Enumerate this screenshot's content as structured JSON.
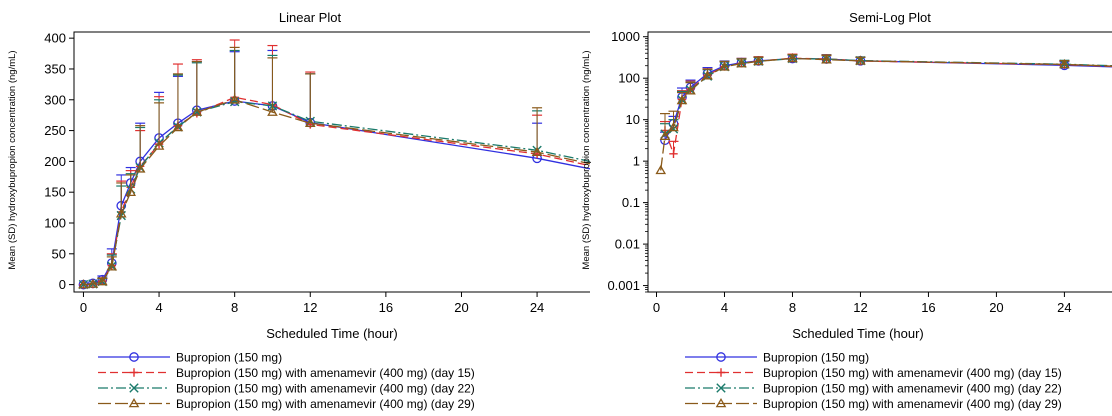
{
  "chart_data": [
    {
      "type": "line",
      "title": "Linear Plot",
      "xlabel": "Scheduled Time (hour)",
      "ylabel": "Mean (SD) hydroxybupropion concentration (ng/mL)",
      "xticks": [
        "0",
        "4",
        "8",
        "12",
        "16",
        "20",
        "24"
      ],
      "yticks": [
        "0",
        "50",
        "100",
        "150",
        "200",
        "250",
        "300",
        "350",
        "400"
      ],
      "xlim": [
        -0.5,
        26.8
      ],
      "ylim": [
        -12,
        410
      ],
      "yscale": "linear",
      "grid": false,
      "error_bars": "SD (upper)",
      "legend_position": "bottom-left",
      "series": [
        {
          "name": "Bupropion (150 mg)",
          "color": "#3030e0",
          "marker": "circle",
          "dash": "solid",
          "x": [
            0,
            0.5,
            1,
            1.5,
            2,
            2.5,
            3,
            4,
            5,
            6,
            8,
            10,
            12,
            24,
            26.8
          ],
          "y": [
            0,
            2,
            8,
            35,
            128,
            165,
            200,
            238,
            262,
            283,
            298,
            290,
            263,
            205,
            188
          ],
          "sd_upper": [
            0,
            2,
            14,
            58,
            178,
            190,
            262,
            312,
            338,
            362,
            378,
            380,
            342,
            262,
            null
          ]
        },
        {
          "name": "Bupropion (150 mg) with amenamevir (400 mg) (day 15)",
          "color": "#e03030",
          "marker": "plus",
          "dash": "dash",
          "x": [
            0,
            0.5,
            1,
            1.5,
            2,
            2.5,
            3,
            4,
            5,
            6,
            8,
            10,
            12,
            24,
            26.8
          ],
          "y": [
            0,
            1,
            6,
            31,
            118,
            158,
            192,
            228,
            258,
            278,
            304,
            292,
            260,
            212,
            193
          ],
          "sd_upper": [
            0,
            1,
            11,
            50,
            168,
            185,
            250,
            305,
            358,
            365,
            397,
            388,
            345,
            275,
            null
          ]
        },
        {
          "name": "Bupropion (150 mg) with amenamevir (400 mg) (day 22)",
          "color": "#1a7a6a",
          "marker": "x",
          "dash": "dashdot",
          "x": [
            0,
            0.5,
            1,
            1.5,
            2,
            2.5,
            3,
            4,
            5,
            6,
            8,
            10,
            12,
            24,
            26.8
          ],
          "y": [
            0,
            1,
            5,
            30,
            112,
            155,
            190,
            230,
            256,
            280,
            297,
            290,
            265,
            218,
            200
          ],
          "sd_upper": [
            0,
            1,
            10,
            48,
            160,
            180,
            255,
            300,
            340,
            360,
            380,
            372,
            342,
            282,
            null
          ]
        },
        {
          "name": "Bupropion (150 mg) with amenamevir (400 mg) (day 29)",
          "color": "#8a5a1a",
          "marker": "triangle",
          "dash": "longdash",
          "x": [
            0,
            0.5,
            1,
            1.5,
            2,
            2.5,
            3,
            4,
            5,
            6,
            8,
            10,
            12,
            24,
            26.8
          ],
          "y": [
            0,
            1,
            5,
            29,
            115,
            150,
            188,
            225,
            255,
            280,
            300,
            280,
            262,
            215,
            196
          ],
          "sd_upper": [
            0,
            1,
            10,
            45,
            165,
            178,
            258,
            295,
            342,
            362,
            385,
            368,
            342,
            287,
            null
          ]
        }
      ]
    },
    {
      "type": "line",
      "title": "Semi-Log Plot",
      "xlabel": "Scheduled Time (hour)",
      "ylabel": "Mean (SD) hydroxybupropion concentration (ng/mL)",
      "xticks": [
        "0",
        "4",
        "8",
        "12",
        "16",
        "20",
        "24"
      ],
      "yticks": [
        "0.001",
        "0.01",
        "0.1",
        "1",
        "10",
        "100",
        "1000"
      ],
      "xlim": [
        -0.5,
        26.8
      ],
      "ylim": [
        0.0007,
        1300
      ],
      "yscale": "log",
      "grid": false,
      "error_bars": "SD (upper)",
      "legend_position": "bottom-left",
      "series": [
        {
          "name": "Bupropion (150 mg)",
          "color": "#3030e0",
          "marker": "circle",
          "dash": "solid",
          "x": [
            0.5,
            1,
            1.5,
            2,
            3,
            4,
            5,
            6,
            8,
            10,
            12,
            24,
            26.8
          ],
          "y": [
            3.2,
            8,
            35,
            60,
            130,
            200,
            238,
            262,
            298,
            290,
            263,
            205,
            188
          ],
          "sd_upper": [
            5,
            12,
            58,
            90,
            180,
            260,
            300,
            320,
            360,
            360,
            320,
            250,
            null
          ]
        },
        {
          "name": "Bupropion (150 mg) with amenamevir (400 mg) (day 15)",
          "color": "#e03030",
          "marker": "plus",
          "dash": "dash",
          "x": [
            0.5,
            1,
            1.5,
            2,
            3,
            4,
            5,
            6,
            8,
            10,
            12,
            24,
            26.8
          ],
          "y": [
            5.5,
            1.5,
            31,
            55,
            118,
            192,
            228,
            258,
            304,
            292,
            260,
            212,
            193
          ],
          "sd_upper": [
            9,
            3,
            50,
            85,
            168,
            250,
            300,
            330,
            380,
            370,
            320,
            260,
            null
          ]
        },
        {
          "name": "Bupropion (150 mg) with amenamevir (400 mg) (day 22)",
          "color": "#1a7a6a",
          "marker": "x",
          "dash": "dashdot",
          "x": [
            0.5,
            1,
            1.5,
            2,
            3,
            4,
            5,
            6,
            8,
            10,
            12,
            24,
            26.8
          ],
          "y": [
            4.5,
            6,
            30,
            52,
            112,
            190,
            230,
            256,
            297,
            290,
            265,
            218,
            200
          ],
          "sd_upper": [
            8,
            10,
            48,
            80,
            160,
            250,
            295,
            320,
            370,
            360,
            325,
            270,
            null
          ]
        },
        {
          "name": "Bupropion (150 mg) with amenamevir (400 mg) (day 29)",
          "color": "#8a5a1a",
          "marker": "triangle",
          "dash": "longdash",
          "x": [
            0.25,
            0.5,
            1,
            1.5,
            2,
            3,
            4,
            5,
            6,
            8,
            10,
            12,
            24,
            26.8
          ],
          "y": [
            0.6,
            4,
            6.5,
            29,
            50,
            115,
            188,
            225,
            255,
            300,
            280,
            262,
            215,
            196
          ],
          "sd_upper": [
            null,
            14,
            16,
            45,
            78,
            165,
            255,
            290,
            320,
            370,
            350,
            320,
            265,
            null
          ]
        }
      ]
    }
  ],
  "colors": {
    "background": "#ffffff",
    "axis": "#000000"
  }
}
